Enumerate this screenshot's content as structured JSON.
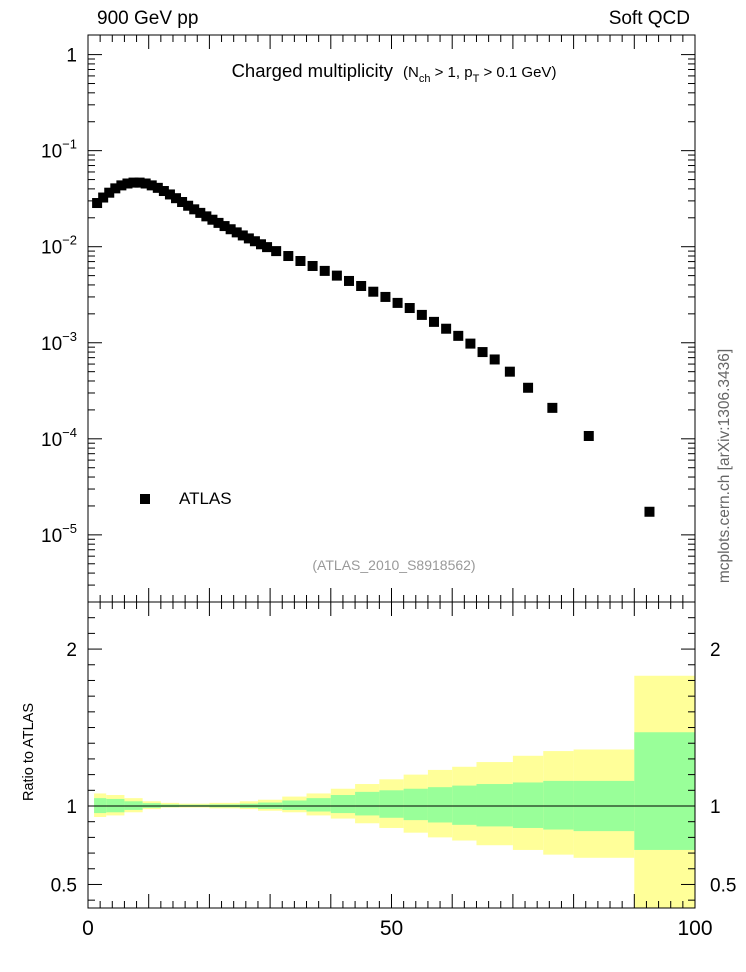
{
  "header": {
    "left": "900 GeV pp",
    "right": "Soft QCD"
  },
  "title": {
    "main": "Charged multiplicity",
    "sub_prefix": "(N",
    "sub_ch": "ch",
    "sub_mid": " > 1, p",
    "sub_T": "T",
    "sub_suffix": " > 0.1 GeV)"
  },
  "analysis_tag": "(ATLAS_2010_S8918562)",
  "watermark": "mcplots.cern.ch [arXiv:1306.3436]",
  "colors": {
    "marker": "#000000",
    "band_inner": "#99ff99",
    "band_outer": "#ffff99",
    "tag_text": "#999999",
    "watermark_text": "#666666"
  },
  "chart_data": [
    {
      "type": "scatter",
      "title": "Charged multiplicity",
      "xlabel": "",
      "ylabel": "",
      "xlim": [
        0,
        100
      ],
      "ylim": [
        2e-06,
        1.6
      ],
      "yscale": "log",
      "yticks": [
        {
          "value": 1,
          "base": "1",
          "exp": ""
        },
        {
          "value": 0.1,
          "base": "10",
          "exp": "−1"
        },
        {
          "value": 0.01,
          "base": "10",
          "exp": "−2"
        },
        {
          "value": 0.001,
          "base": "10",
          "exp": "−3"
        },
        {
          "value": 0.0001,
          "base": "10",
          "exp": "−4"
        },
        {
          "value": 1e-05,
          "base": "10",
          "exp": "−5"
        }
      ],
      "legend": {
        "position": "bottom-left",
        "entries": [
          "ATLAS"
        ]
      },
      "series": [
        {
          "name": "ATLAS",
          "points": [
            [
              1.5,
              0.0285
            ],
            [
              2.5,
              0.0325
            ],
            [
              3.5,
              0.0365
            ],
            [
              4.5,
              0.0405
            ],
            [
              5.5,
              0.0435
            ],
            [
              6.5,
              0.0455
            ],
            [
              7.5,
              0.0465
            ],
            [
              8.5,
              0.0465
            ],
            [
              9.5,
              0.0455
            ],
            [
              10.5,
              0.0435
            ],
            [
              11.5,
              0.041
            ],
            [
              12.5,
              0.038
            ],
            [
              13.5,
              0.035
            ],
            [
              14.5,
              0.032
            ],
            [
              15.5,
              0.0292
            ],
            [
              16.5,
              0.0267
            ],
            [
              17.5,
              0.0245
            ],
            [
              18.5,
              0.0225
            ],
            [
              19.5,
              0.0207
            ],
            [
              20.5,
              0.0191
            ],
            [
              21.5,
              0.0177
            ],
            [
              22.5,
              0.0164
            ],
            [
              23.5,
              0.0152
            ],
            [
              24.5,
              0.0141
            ],
            [
              25.5,
              0.0131
            ],
            [
              26.5,
              0.0122
            ],
            [
              27.5,
              0.0114
            ],
            [
              28.5,
              0.0106
            ],
            [
              29.5,
              0.0099
            ],
            [
              31.0,
              0.009
            ],
            [
              33.0,
              0.008
            ],
            [
              35.0,
              0.0071
            ],
            [
              37.0,
              0.0063
            ],
            [
              39.0,
              0.0056
            ],
            [
              41.0,
              0.005
            ],
            [
              43.0,
              0.0044
            ],
            [
              45.0,
              0.0039
            ],
            [
              47.0,
              0.0034
            ],
            [
              49.0,
              0.003
            ],
            [
              51.0,
              0.0026
            ],
            [
              53.0,
              0.0023
            ],
            [
              55.0,
              0.00195
            ],
            [
              57.0,
              0.00165
            ],
            [
              59.0,
              0.0014
            ],
            [
              61.0,
              0.00118
            ],
            [
              63.0,
              0.00098
            ],
            [
              65.0,
              0.0008
            ],
            [
              67.0,
              0.00067
            ],
            [
              69.5,
              0.0005
            ],
            [
              72.5,
              0.00034
            ],
            [
              76.5,
              0.00021
            ],
            [
              82.5,
              0.000107
            ],
            [
              92.5,
              1.74e-05
            ]
          ]
        }
      ]
    },
    {
      "type": "area",
      "ylabel": "Ratio to ATLAS",
      "xlabel": "",
      "xlim": [
        0,
        100
      ],
      "ylim": [
        0.35,
        2.3
      ],
      "xticks": [
        0,
        50,
        100
      ],
      "yticks": [
        0.5,
        1,
        2
      ],
      "reference_line": 1,
      "bands": [
        {
          "name": "outer",
          "bins": [
            {
              "x": [
                1,
                3
              ],
              "lo": 0.93,
              "hi": 1.08
            },
            {
              "x": [
                3,
                6
              ],
              "lo": 0.94,
              "hi": 1.07
            },
            {
              "x": [
                6,
                9
              ],
              "lo": 0.96,
              "hi": 1.05
            },
            {
              "x": [
                9,
                12
              ],
              "lo": 0.98,
              "hi": 1.03
            },
            {
              "x": [
                12,
                15
              ],
              "lo": 0.99,
              "hi": 1.02
            },
            {
              "x": [
                15,
                20
              ],
              "lo": 0.99,
              "hi": 1.015
            },
            {
              "x": [
                20,
                25
              ],
              "lo": 0.985,
              "hi": 1.02
            },
            {
              "x": [
                25,
                28
              ],
              "lo": 0.98,
              "hi": 1.03
            },
            {
              "x": [
                28,
                32
              ],
              "lo": 0.97,
              "hi": 1.04
            },
            {
              "x": [
                32,
                36
              ],
              "lo": 0.96,
              "hi": 1.06
            },
            {
              "x": [
                36,
                40
              ],
              "lo": 0.94,
              "hi": 1.08
            },
            {
              "x": [
                40,
                44
              ],
              "lo": 0.92,
              "hi": 1.11
            },
            {
              "x": [
                44,
                48
              ],
              "lo": 0.89,
              "hi": 1.14
            },
            {
              "x": [
                48,
                52
              ],
              "lo": 0.86,
              "hi": 1.17
            },
            {
              "x": [
                52,
                56
              ],
              "lo": 0.83,
              "hi": 1.2
            },
            {
              "x": [
                56,
                60
              ],
              "lo": 0.8,
              "hi": 1.23
            },
            {
              "x": [
                60,
                64
              ],
              "lo": 0.78,
              "hi": 1.25
            },
            {
              "x": [
                64,
                70
              ],
              "lo": 0.75,
              "hi": 1.28
            },
            {
              "x": [
                70,
                75
              ],
              "lo": 0.72,
              "hi": 1.32
            },
            {
              "x": [
                75,
                80
              ],
              "lo": 0.69,
              "hi": 1.35
            },
            {
              "x": [
                80,
                90
              ],
              "lo": 0.67,
              "hi": 1.36
            },
            {
              "x": [
                90,
                100
              ],
              "lo": 0.35,
              "hi": 1.83
            }
          ]
        },
        {
          "name": "inner",
          "bins": [
            {
              "x": [
                1,
                3
              ],
              "lo": 0.955,
              "hi": 1.05
            },
            {
              "x": [
                3,
                6
              ],
              "lo": 0.96,
              "hi": 1.045
            },
            {
              "x": [
                6,
                9
              ],
              "lo": 0.975,
              "hi": 1.03
            },
            {
              "x": [
                9,
                12
              ],
              "lo": 0.988,
              "hi": 1.018
            },
            {
              "x": [
                12,
                15
              ],
              "lo": 0.993,
              "hi": 1.01
            },
            {
              "x": [
                15,
                20
              ],
              "lo": 0.995,
              "hi": 1.008
            },
            {
              "x": [
                20,
                25
              ],
              "lo": 0.992,
              "hi": 1.01
            },
            {
              "x": [
                25,
                28
              ],
              "lo": 0.988,
              "hi": 1.015
            },
            {
              "x": [
                28,
                32
              ],
              "lo": 0.982,
              "hi": 1.022
            },
            {
              "x": [
                32,
                36
              ],
              "lo": 0.975,
              "hi": 1.035
            },
            {
              "x": [
                36,
                40
              ],
              "lo": 0.965,
              "hi": 1.05
            },
            {
              "x": [
                40,
                44
              ],
              "lo": 0.955,
              "hi": 1.07
            },
            {
              "x": [
                44,
                48
              ],
              "lo": 0.94,
              "hi": 1.09
            },
            {
              "x": [
                48,
                52
              ],
              "lo": 0.925,
              "hi": 1.1
            },
            {
              "x": [
                52,
                56
              ],
              "lo": 0.91,
              "hi": 1.11
            },
            {
              "x": [
                56,
                60
              ],
              "lo": 0.895,
              "hi": 1.12
            },
            {
              "x": [
                60,
                64
              ],
              "lo": 0.88,
              "hi": 1.13
            },
            {
              "x": [
                64,
                70
              ],
              "lo": 0.87,
              "hi": 1.14
            },
            {
              "x": [
                70,
                75
              ],
              "lo": 0.86,
              "hi": 1.15
            },
            {
              "x": [
                75,
                80
              ],
              "lo": 0.85,
              "hi": 1.16
            },
            {
              "x": [
                80,
                90
              ],
              "lo": 0.84,
              "hi": 1.16
            },
            {
              "x": [
                90,
                100
              ],
              "lo": 0.72,
              "hi": 1.47
            }
          ]
        }
      ]
    }
  ]
}
